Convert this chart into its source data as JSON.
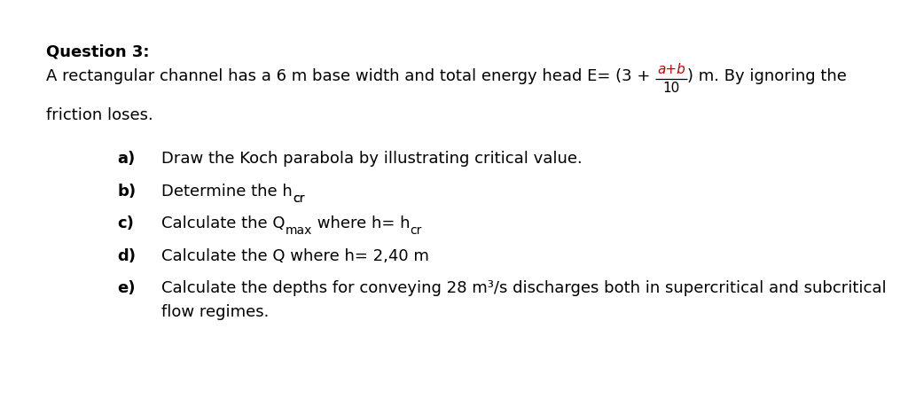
{
  "background_color": "#ffffff",
  "title": "Question 3:",
  "body_fontsize": 13,
  "line1_before": "A rectangular channel has a 6 m base width and total energy head E= (3 + ",
  "frac_num": "a+b",
  "frac_den": "10",
  "line1_after": ") m. By ignoring the",
  "line2": "friction loses.",
  "items": [
    {
      "label": "a)",
      "text": "Draw the Koch parabola by illustrating critical value."
    },
    {
      "label": "b)",
      "text": "Determine the h",
      "sub": "cr"
    },
    {
      "label": "c)",
      "text": "Calculate the Q",
      "sub1": "max",
      "text2": " where h= h",
      "sub2": "cr"
    },
    {
      "label": "d)",
      "text": "Calculate the Q where h= 2,40 m"
    },
    {
      "label": "e)",
      "text": "Calculate the depths for conveying 28 m³/s discharges both in supercritical and subcritical",
      "text2": "flow regimes."
    }
  ],
  "fig_w": 10.24,
  "fig_h": 4.59,
  "dpi": 100
}
